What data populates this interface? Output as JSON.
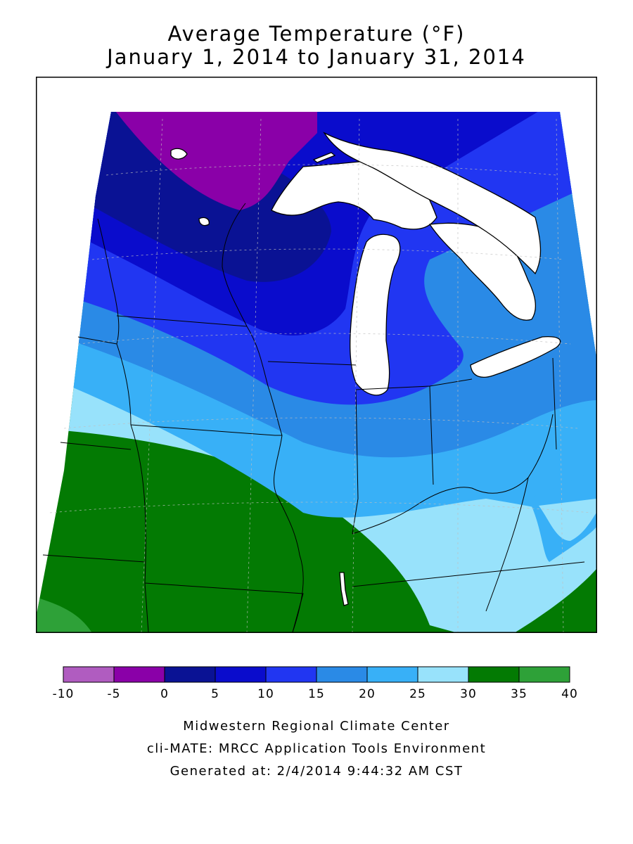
{
  "title": {
    "line1": "Average Temperature (°F)",
    "line2": "January 1, 2014 to January 31, 2014"
  },
  "legend": {
    "bins": [
      {
        "from": -10,
        "to": -5,
        "color": "#b05cc0"
      },
      {
        "from": -5,
        "to": 0,
        "color": "#8a00a8"
      },
      {
        "from": 0,
        "to": 5,
        "color": "#0a1294"
      },
      {
        "from": 5,
        "to": 10,
        "color": "#0a0ccc"
      },
      {
        "from": 10,
        "to": 15,
        "color": "#2136f2"
      },
      {
        "from": 15,
        "to": 20,
        "color": "#2a8ae6"
      },
      {
        "from": 20,
        "to": 25,
        "color": "#38b0f7"
      },
      {
        "from": 25,
        "to": 30,
        "color": "#98e2fb"
      },
      {
        "from": 30,
        "to": 35,
        "color": "#037a03"
      },
      {
        "from": 35,
        "to": 40,
        "color": "#2ea138"
      }
    ],
    "tick_labels": [
      "-10",
      "-5",
      "0",
      "5",
      "10",
      "15",
      "20",
      "25",
      "30",
      "35",
      "40"
    ]
  },
  "footer": {
    "line1": "Midwestern Regional Climate Center",
    "line2": "cli-MATE: MRCC Application Tools Environment",
    "line3": "Generated at: 2/4/2014 9:44:32 AM CST"
  },
  "map": {
    "region": "US Midwest",
    "variable": "average temperature (°F)",
    "water_color": "#ffffff",
    "grid_lines": true,
    "coldest_band": "-5 to 0 in northeastern Minnesota",
    "warmest_band": "30 to 40 in southern Missouri and southern Kentucky"
  }
}
